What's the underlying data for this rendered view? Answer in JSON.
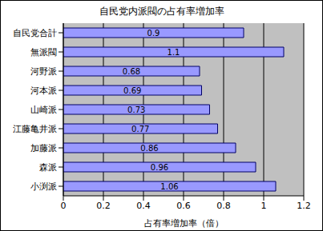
{
  "chart_data": {
    "type": "bar",
    "title": "自民党内派閥の占有率増加率",
    "x_label": "占有率増加率（倍）",
    "orientation": "horizontal",
    "categories": [
      "自民党合計",
      "無派閥",
      "河野派",
      "河本派",
      "山崎派",
      "江藤亀井派",
      "加藤派",
      "森派",
      "小渕派"
    ],
    "values": [
      0.9,
      1.1,
      0.68,
      0.69,
      0.73,
      0.77,
      0.86,
      0.96,
      1.06
    ],
    "color": "#9999ff",
    "xlim": [
      0,
      1.2
    ],
    "xticks": [
      0,
      0.2,
      0.4,
      0.6,
      0.8,
      1,
      1.2
    ],
    "grid": true,
    "data_labels": true
  }
}
